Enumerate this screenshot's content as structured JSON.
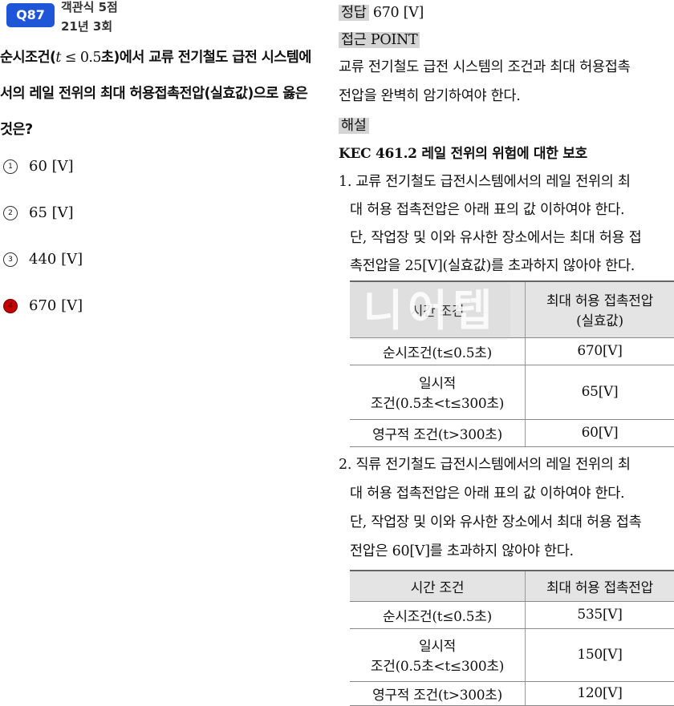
{
  "question": {
    "badge": "Q87",
    "type_score": "객관식 5점",
    "session": "21년 3회",
    "line1_pre": "순시조건(",
    "line1_math_var": "t",
    "line1_math_rest": " ≤ 0.5",
    "line1_post": "초)에서 교류 전기철도 급전 시스템에",
    "line2": "서의 레일 전위의 최대 허용접촉전압(실효값)으로 옳은",
    "line3": "것은?"
  },
  "options": [
    {
      "num": "1",
      "value": "60 [V]",
      "selected": false
    },
    {
      "num": "2",
      "value": "65 [V]",
      "selected": false
    },
    {
      "num": "3",
      "value": "440 [V]",
      "selected": false
    },
    {
      "num": "4",
      "value": "670 [V]",
      "selected": true
    }
  ],
  "answer": {
    "label": "정답",
    "value": "670 [V]"
  },
  "approach": {
    "label": "접근 POINT",
    "line1": "교류 전기철도 급전 시스템의 조건과 최대 허용접촉",
    "line2": "전압을 완벽히 암기하여야 한다."
  },
  "explanation": {
    "label": "해설",
    "section_title": "KEC 461.2 레일 전위의 위험에 대한 보호",
    "item1": {
      "line1": "1. 교류 전기철도 급전시스템에서의 레일 전위의 최",
      "line2": "대 허용 접촉전압은 아래 표의 값 이하여야 한다.",
      "line3": "단, 작업장 및 이와 유사한 장소에서는 최대 허용 접",
      "line4": "촉전압을 25[V](실효값)를 초과하지 않아야 한다."
    },
    "table1": {
      "header_col1": "시간 조건",
      "header_col2_line1": "최대 허용 접촉전압",
      "header_col2_line2": "(실효값)",
      "rows": [
        {
          "cond_line1": "순시조건(t≤0.5초)",
          "cond_line2": "",
          "value": "670[V]"
        },
        {
          "cond_line1": "일시적",
          "cond_line2": "조건(0.5초<t≤300초)",
          "value": "65[V]"
        },
        {
          "cond_line1": "영구적 조건(t>300초)",
          "cond_line2": "",
          "value": "60[V]"
        }
      ]
    },
    "item2": {
      "line1": "2. 직류 전기철도 급전시스템에서의 레일 전위의 최",
      "line2": "대 허용 접촉전압은 아래 표의 값 이하여야 한다.",
      "line3": "단, 작업장 및 이와 유사한 장소에서 최대 허용 접촉",
      "line4": "전압은 60[V]를 초과하지 않아야 한다."
    },
    "table2": {
      "header_col1": "시간 조건",
      "header_col2": "최대 허용 접촉전압",
      "rows": [
        {
          "cond_line1": "순시조건(t≤0.5초)",
          "cond_line2": "",
          "value": "535[V]"
        },
        {
          "cond_line1": "일시적",
          "cond_line2": "조건(0.5초<t≤300초)",
          "value": "150[V]"
        },
        {
          "cond_line1": "영구적 조건(t>300초)",
          "cond_line2": "",
          "value": "120[V]"
        }
      ]
    }
  },
  "watermark": "니어텝",
  "colors": {
    "badge": "#1f56d8",
    "selected_option": "#c40000",
    "highlight": "#d4d4d4",
    "table_header": "#e4e4e4"
  }
}
